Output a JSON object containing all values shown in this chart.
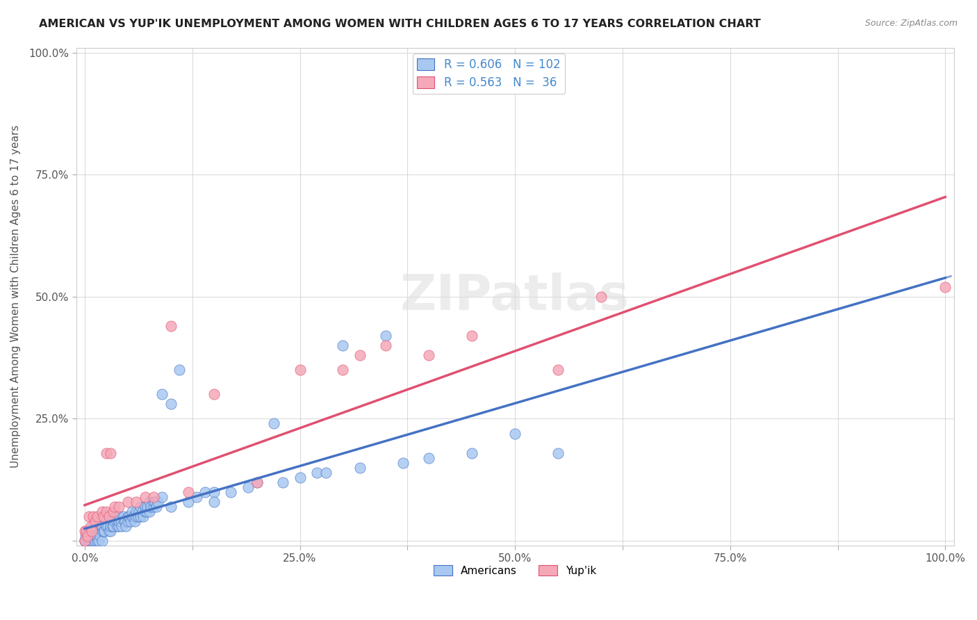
{
  "title": "AMERICAN VS YUP'IK UNEMPLOYMENT AMONG WOMEN WITH CHILDREN AGES 6 TO 17 YEARS CORRELATION CHART",
  "source": "Source: ZipAtlas.com",
  "ylabel": "Unemployment Among Women with Children Ages 6 to 17 years",
  "xlabel": "",
  "xlim": [
    0,
    1.0
  ],
  "ylim": [
    0,
    1.0
  ],
  "xticks": [
    0.0,
    0.125,
    0.25,
    0.375,
    0.5,
    0.625,
    0.75,
    0.875,
    1.0
  ],
  "xticklabels": [
    "0.0%",
    "",
    "25.0%",
    "",
    "50.0%",
    "",
    "75.0%",
    "",
    "100.0%"
  ],
  "yticks": [
    0.0,
    0.25,
    0.5,
    0.75,
    1.0
  ],
  "yticklabels": [
    "",
    "25.0%",
    "50.0%",
    "75.0%",
    "100.0%"
  ],
  "american_color": "#a8c8f0",
  "american_line_color": "#4472c4",
  "yupik_color": "#f4a8b8",
  "yupik_line_color": "#e05070",
  "R_american": 0.606,
  "N_american": 102,
  "R_yupik": 0.563,
  "N_yupik": 36,
  "legend_R_color": "#4488cc",
  "watermark": "ZIPatlas",
  "background_color": "#ffffff",
  "american_scatter": [
    [
      0.0,
      0.0
    ],
    [
      0.0,
      0.0
    ],
    [
      0.001,
      0.01
    ],
    [
      0.002,
      0.0
    ],
    [
      0.003,
      0.02
    ],
    [
      0.005,
      0.0
    ],
    [
      0.005,
      0.0
    ],
    [
      0.006,
      0.0
    ],
    [
      0.007,
      0.0
    ],
    [
      0.008,
      0.01
    ],
    [
      0.01,
      0.0
    ],
    [
      0.01,
      0.02
    ],
    [
      0.01,
      0.03
    ],
    [
      0.012,
      0.0
    ],
    [
      0.013,
      0.01
    ],
    [
      0.014,
      0.02
    ],
    [
      0.015,
      0.0
    ],
    [
      0.015,
      0.01
    ],
    [
      0.016,
      0.0
    ],
    [
      0.017,
      0.02
    ],
    [
      0.018,
      0.01
    ],
    [
      0.02,
      0.0
    ],
    [
      0.02,
      0.02
    ],
    [
      0.02,
      0.03
    ],
    [
      0.022,
      0.02
    ],
    [
      0.023,
      0.02
    ],
    [
      0.025,
      0.03
    ],
    [
      0.025,
      0.05
    ],
    [
      0.027,
      0.03
    ],
    [
      0.028,
      0.02
    ],
    [
      0.03,
      0.04
    ],
    [
      0.03,
      0.02
    ],
    [
      0.03,
      0.03
    ],
    [
      0.032,
      0.03
    ],
    [
      0.033,
      0.03
    ],
    [
      0.035,
      0.04
    ],
    [
      0.035,
      0.05
    ],
    [
      0.037,
      0.04
    ],
    [
      0.038,
      0.03
    ],
    [
      0.04,
      0.03
    ],
    [
      0.04,
      0.04
    ],
    [
      0.04,
      0.05
    ],
    [
      0.042,
      0.04
    ],
    [
      0.043,
      0.03
    ],
    [
      0.045,
      0.05
    ],
    [
      0.046,
      0.04
    ],
    [
      0.047,
      0.04
    ],
    [
      0.048,
      0.03
    ],
    [
      0.05,
      0.04
    ],
    [
      0.05,
      0.05
    ],
    [
      0.052,
      0.05
    ],
    [
      0.053,
      0.04
    ],
    [
      0.055,
      0.05
    ],
    [
      0.055,
      0.06
    ],
    [
      0.057,
      0.05
    ],
    [
      0.058,
      0.04
    ],
    [
      0.06,
      0.05
    ],
    [
      0.06,
      0.06
    ],
    [
      0.062,
      0.05
    ],
    [
      0.063,
      0.06
    ],
    [
      0.065,
      0.05
    ],
    [
      0.065,
      0.07
    ],
    [
      0.067,
      0.06
    ],
    [
      0.068,
      0.05
    ],
    [
      0.07,
      0.06
    ],
    [
      0.07,
      0.07
    ],
    [
      0.072,
      0.06
    ],
    [
      0.073,
      0.07
    ],
    [
      0.075,
      0.06
    ],
    [
      0.075,
      0.08
    ],
    [
      0.077,
      0.07
    ],
    [
      0.08,
      0.07
    ],
    [
      0.08,
      0.08
    ],
    [
      0.082,
      0.08
    ],
    [
      0.083,
      0.07
    ],
    [
      0.085,
      0.08
    ],
    [
      0.09,
      0.09
    ],
    [
      0.09,
      0.3
    ],
    [
      0.1,
      0.28
    ],
    [
      0.1,
      0.07
    ],
    [
      0.11,
      0.35
    ],
    [
      0.12,
      0.08
    ],
    [
      0.13,
      0.09
    ],
    [
      0.14,
      0.1
    ],
    [
      0.15,
      0.1
    ],
    [
      0.15,
      0.08
    ],
    [
      0.17,
      0.1
    ],
    [
      0.19,
      0.11
    ],
    [
      0.2,
      0.12
    ],
    [
      0.22,
      0.24
    ],
    [
      0.23,
      0.12
    ],
    [
      0.25,
      0.13
    ],
    [
      0.27,
      0.14
    ],
    [
      0.28,
      0.14
    ],
    [
      0.3,
      0.4
    ],
    [
      0.32,
      0.15
    ],
    [
      0.35,
      0.42
    ],
    [
      0.37,
      0.16
    ],
    [
      0.4,
      0.17
    ],
    [
      0.45,
      0.18
    ],
    [
      0.5,
      0.22
    ],
    [
      0.55,
      0.18
    ]
  ],
  "yupik_scatter": [
    [
      0.0,
      0.0
    ],
    [
      0.0,
      0.02
    ],
    [
      0.002,
      0.02
    ],
    [
      0.003,
      0.01
    ],
    [
      0.005,
      0.05
    ],
    [
      0.007,
      0.03
    ],
    [
      0.008,
      0.02
    ],
    [
      0.01,
      0.05
    ],
    [
      0.012,
      0.04
    ],
    [
      0.015,
      0.05
    ],
    [
      0.02,
      0.06
    ],
    [
      0.022,
      0.05
    ],
    [
      0.025,
      0.06
    ],
    [
      0.025,
      0.18
    ],
    [
      0.028,
      0.05
    ],
    [
      0.03,
      0.18
    ],
    [
      0.033,
      0.06
    ],
    [
      0.035,
      0.07
    ],
    [
      0.04,
      0.07
    ],
    [
      0.05,
      0.08
    ],
    [
      0.06,
      0.08
    ],
    [
      0.07,
      0.09
    ],
    [
      0.08,
      0.09
    ],
    [
      0.1,
      0.44
    ],
    [
      0.12,
      0.1
    ],
    [
      0.15,
      0.3
    ],
    [
      0.2,
      0.12
    ],
    [
      0.25,
      0.35
    ],
    [
      0.3,
      0.35
    ],
    [
      0.32,
      0.38
    ],
    [
      0.35,
      0.4
    ],
    [
      0.4,
      0.38
    ],
    [
      0.45,
      0.42
    ],
    [
      0.55,
      0.35
    ],
    [
      0.6,
      0.5
    ],
    [
      1.0,
      0.52
    ]
  ]
}
